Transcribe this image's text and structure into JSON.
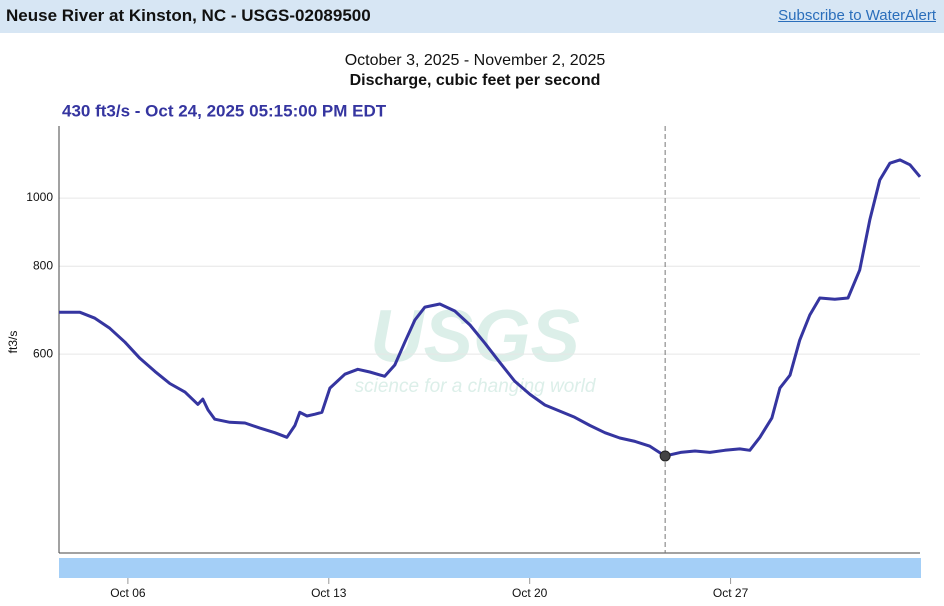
{
  "header": {
    "title": "Neuse River at Kinston, NC - USGS-02089500",
    "link": "Subscribe to WaterAlert"
  },
  "chart_data": {
    "type": "line",
    "subtitle": "October 3, 2025 - November 2, 2025",
    "title": "Discharge, cubic feet per second",
    "y_label": "ft3/s",
    "watermark": {
      "logo": "USGS",
      "tagline": "science for a changing world"
    },
    "cursor": {
      "x": 24.72,
      "value": 430,
      "label": "430 ft3/s - Oct 24, 2025 05:15:00 PM EDT"
    },
    "color": "#3535a0",
    "log_y": true,
    "grid": true,
    "xlim": [
      3.6,
      33.6
    ],
    "xticks": [
      {
        "value": 6,
        "label": "Oct 06"
      },
      {
        "value": 13,
        "label": "Oct 13"
      },
      {
        "value": 20,
        "label": "Oct 20"
      },
      {
        "value": 27,
        "label": "Oct 27"
      }
    ],
    "ylim": [
      313,
      1266
    ],
    "yticks": [
      600,
      800,
      1000
    ],
    "x": [
      3.6,
      4.33,
      4.85,
      5.37,
      5.9,
      6.42,
      6.94,
      7.46,
      7.99,
      8.44,
      8.61,
      8.79,
      9.03,
      9.55,
      10.08,
      10.6,
      11.12,
      11.54,
      11.82,
      11.99,
      12.24,
      12.52,
      12.76,
      13.04,
      13.56,
      14.01,
      14.43,
      14.95,
      15.3,
      15.65,
      16.0,
      16.35,
      16.87,
      17.39,
      17.92,
      18.44,
      18.96,
      19.48,
      20.01,
      20.53,
      21.05,
      21.57,
      22.1,
      22.62,
      23.14,
      23.67,
      24.19,
      24.71,
      25.26,
      25.76,
      26.28,
      26.8,
      27.32,
      27.67,
      28.02,
      28.44,
      28.72,
      29.07,
      29.41,
      29.76,
      30.11,
      30.63,
      31.09,
      31.5,
      31.85,
      32.2,
      32.55,
      32.9,
      33.25,
      33.6
    ],
    "values": [
      688,
      688,
      675,
      653,
      624,
      592,
      567,
      545,
      530,
      509,
      518,
      500,
      485,
      480,
      479,
      471,
      464,
      457,
      475,
      496,
      490,
      493,
      496,
      537,
      562,
      571,
      566,
      558,
      579,
      624,
      671,
      700,
      707,
      691,
      660,
      622,
      584,
      549,
      526,
      508,
      498,
      488,
      475,
      464,
      456,
      451,
      444,
      430,
      435,
      437,
      435,
      438,
      440,
      438,
      457,
      487,
      537,
      560,
      628,
      682,
      721,
      718,
      721,
      790,
      931,
      1061,
      1121,
      1133,
      1115,
      1072
    ]
  }
}
